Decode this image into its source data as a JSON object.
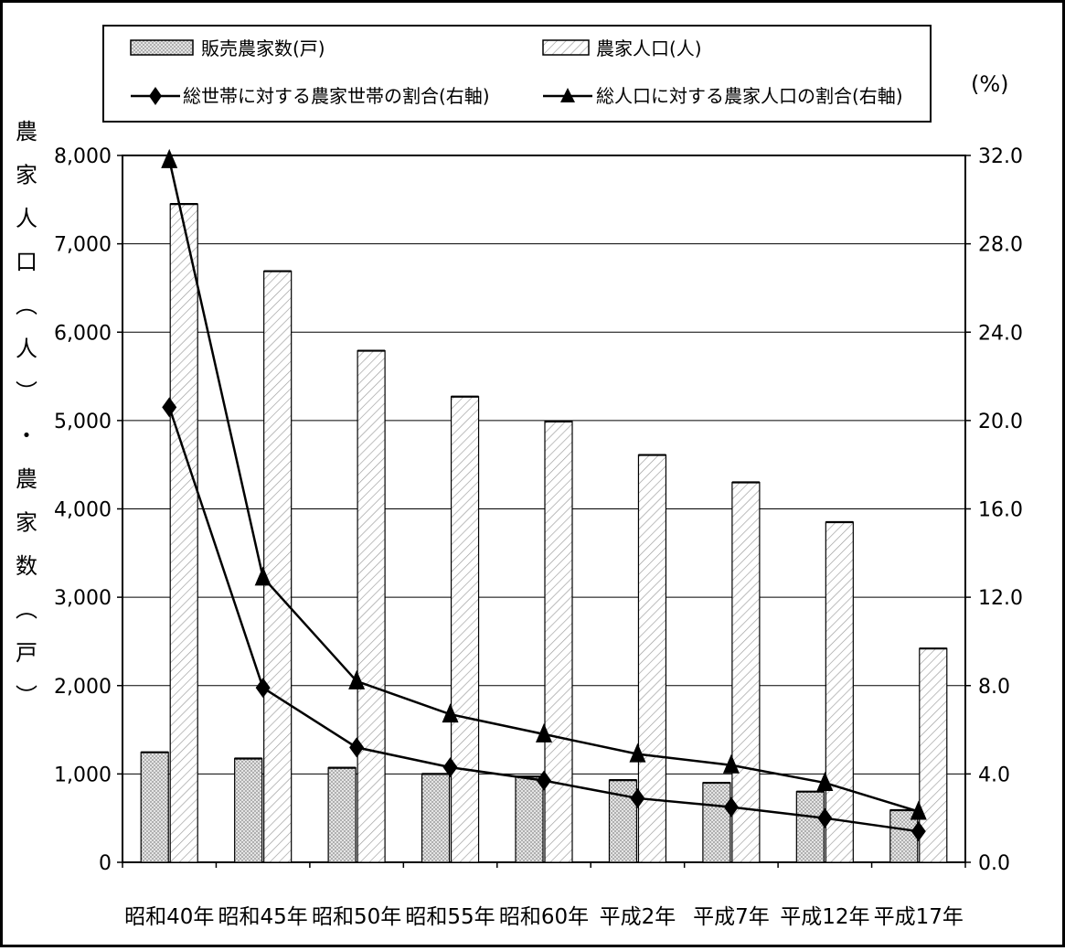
{
  "chart_data": {
    "type": "bar",
    "categories": [
      "昭和40年",
      "昭和45年",
      "昭和50年",
      "昭和55年",
      "昭和60年",
      "平成2年",
      "平成7年",
      "平成12年",
      "平成17年"
    ],
    "bar_series": [
      {
        "name": "販売農家数(戸)",
        "values": [
          1245,
          1175,
          1070,
          1000,
          970,
          930,
          900,
          800,
          590
        ],
        "color": "#d0d0d0",
        "pattern": "dotted"
      },
      {
        "name": "農家人口(人)",
        "values": [
          7450,
          6690,
          5790,
          5270,
          4990,
          4610,
          4300,
          3850,
          2420
        ],
        "color": "#ffffff",
        "pattern": "diagonal-hatch"
      }
    ],
    "line_series": [
      {
        "name": "総世帯に対する農家世帯の割合(右軸)",
        "values": [
          20.6,
          7.9,
          5.2,
          4.3,
          3.7,
          2.9,
          2.5,
          2.0,
          1.4
        ],
        "marker": "diamond",
        "axis": "right"
      },
      {
        "name": "総人口に対する農家人口の割合(右軸)",
        "values": [
          31.8,
          12.9,
          8.2,
          6.7,
          5.8,
          4.9,
          4.4,
          3.6,
          2.3
        ],
        "marker": "triangle",
        "axis": "right"
      }
    ],
    "y_left": {
      "label_chars": [
        "農",
        "家",
        "人",
        "口",
        "︵",
        "人",
        "︶",
        "・",
        "農",
        "家",
        "数",
        "︵",
        "戸",
        "︶"
      ],
      "lim": [
        0,
        8000
      ],
      "ticks": [
        "0",
        "1,000",
        "2,000",
        "3,000",
        "4,000",
        "5,000",
        "6,000",
        "7,000",
        "8,000"
      ]
    },
    "y_right": {
      "unit_label": "(%)",
      "lim": [
        0,
        32
      ],
      "ticks": [
        "0.0",
        "4.0",
        "8.0",
        "12.0",
        "16.0",
        "20.0",
        "24.0",
        "28.0",
        "32.0"
      ]
    },
    "grid": true,
    "legend": "top"
  }
}
